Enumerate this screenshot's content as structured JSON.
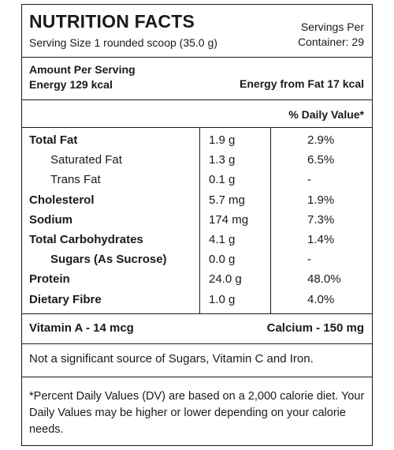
{
  "header": {
    "title": "NUTRITION FACTS",
    "serving_size": "Serving Size 1 rounded scoop (35.0 g)",
    "servings_per_line1": "Servings Per",
    "servings_per_line2": "Container: 29"
  },
  "energy": {
    "amount_per_serving": "Amount Per Serving",
    "energy": "Energy 129 kcal",
    "energy_from_fat": "Energy from Fat 17 kcal"
  },
  "daily_value_header": "% Daily Value*",
  "nutrients": [
    {
      "name": "Total Fat",
      "amount": "1.9 g",
      "dv": "2.9%"
    },
    {
      "name": "Saturated Fat",
      "amount": "1.3 g",
      "dv": "6.5%"
    },
    {
      "name": "Trans Fat",
      "amount": "0.1 g",
      "dv": "-"
    },
    {
      "name": "Cholesterol",
      "amount": "5.7 mg",
      "dv": "1.9%"
    },
    {
      "name": "Sodium",
      "amount": "174 mg",
      "dv": "7.3%"
    },
    {
      "name": "Total Carbohydrates",
      "amount": "4.1 g",
      "dv": "1.4%"
    },
    {
      "name": "Sugars (As Sucrose)",
      "amount": "0.0 g",
      "dv": "-"
    },
    {
      "name": "Protein",
      "amount": "24.0 g",
      "dv": "48.0%"
    },
    {
      "name": "Dietary Fibre",
      "amount": "1.0 g",
      "dv": "4.0%"
    }
  ],
  "vitamins": {
    "vitamin_a": "Vitamin A - 14 mcg",
    "calcium": "Calcium - 150 mg"
  },
  "not_significant": "Not a significant source of Sugars, Vitamin C and Iron.",
  "footnote": "*Percent Daily Values (DV) are based on a 2,000 calorie diet. Your Daily Values may be higher or lower depending on your calorie needs."
}
